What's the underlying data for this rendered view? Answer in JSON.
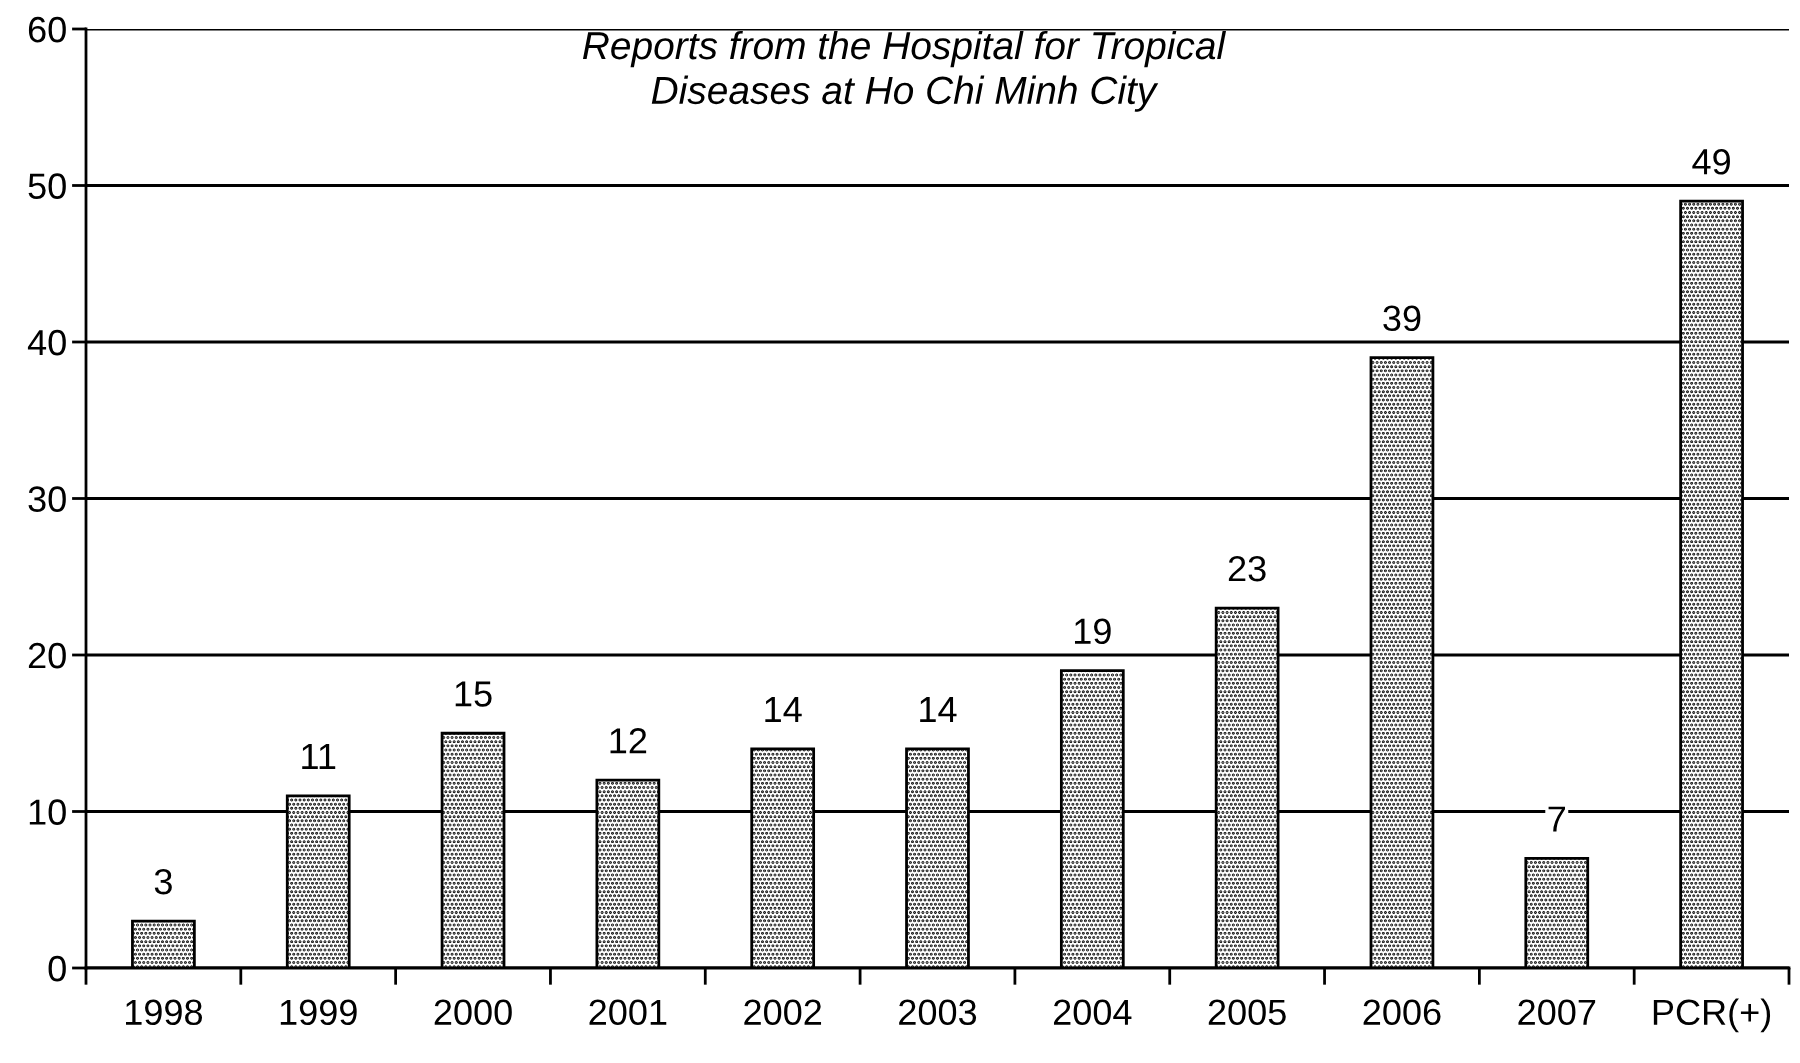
{
  "chart_data": {
    "type": "bar",
    "title": "Reports from the Hospital for Tropical\nDiseases at Ho Chi Minh City",
    "categories": [
      "1998",
      "1999",
      "2000",
      "2001",
      "2002",
      "2003",
      "2004",
      "2005",
      "2006",
      "2007",
      "PCR(+)"
    ],
    "values": [
      3,
      11,
      15,
      12,
      14,
      14,
      19,
      23,
      39,
      7,
      49
    ],
    "color": "#000000",
    "ylim": [
      0,
      60
    ],
    "yticks": [
      0,
      10,
      20,
      30,
      40,
      50,
      60
    ],
    "grid": "y",
    "data_labels": true,
    "legend": false
  }
}
